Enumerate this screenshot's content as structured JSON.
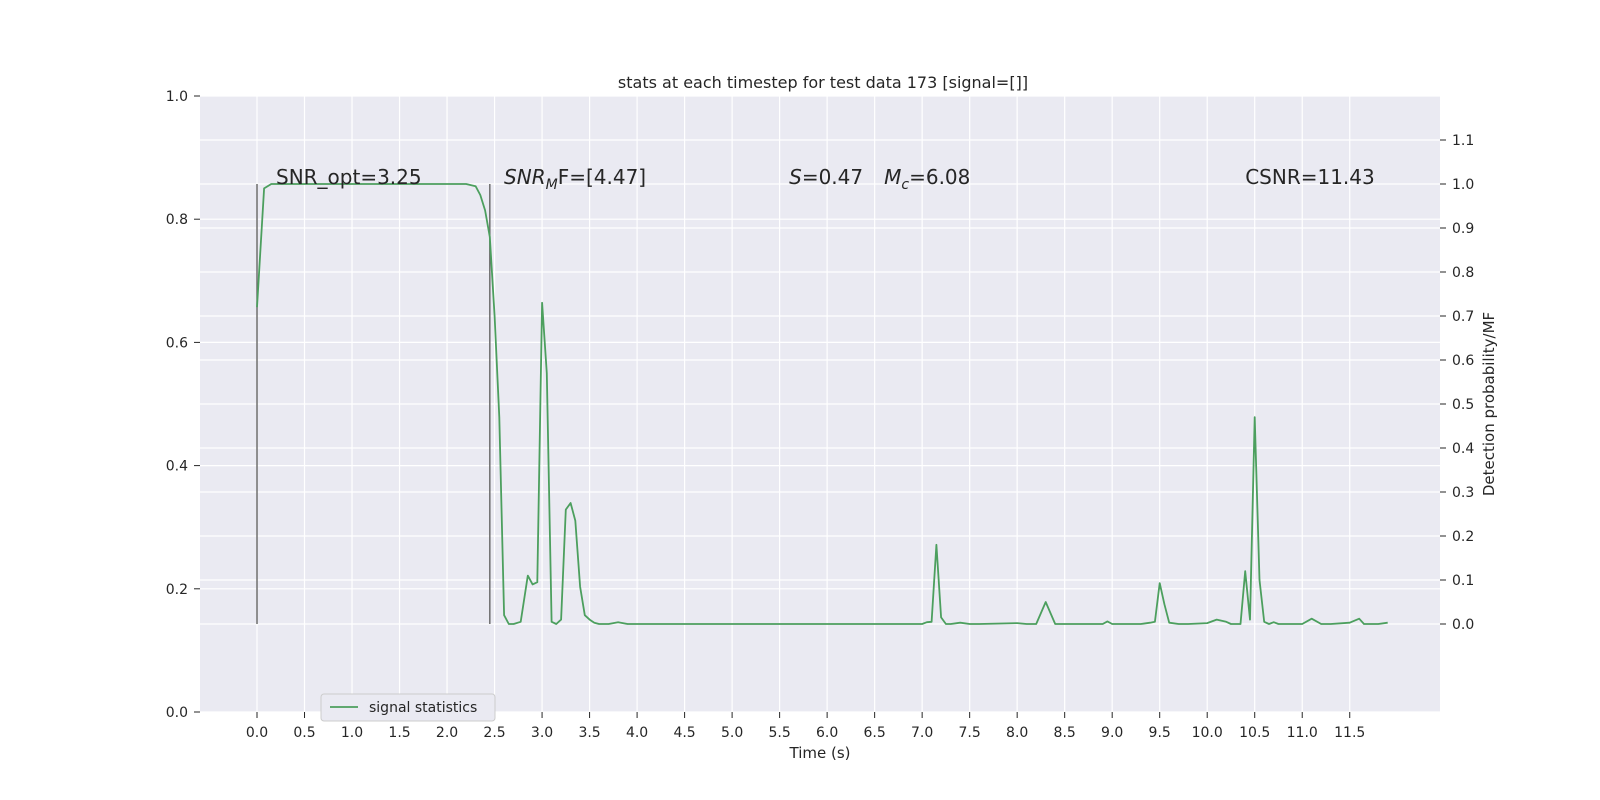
{
  "chart_data": {
    "type": "line",
    "title": "stats at each timestep for test data 173 [signal=[]]",
    "xlabel": "Time (s)",
    "ylabel": "",
    "y2label": "Detection probability/MF",
    "xlim": [
      -0.6,
      12.45
    ],
    "ylim": [
      0.0,
      1.0
    ],
    "y2lim": [
      -0.2,
      1.2
    ],
    "xticks": [
      "0.0",
      "0.5",
      "1.0",
      "1.5",
      "2.0",
      "2.5",
      "3.0",
      "3.5",
      "4.0",
      "4.5",
      "5.0",
      "5.5",
      "6.0",
      "6.5",
      "7.0",
      "7.5",
      "8.0",
      "8.5",
      "9.0",
      "9.5",
      "10.0",
      "10.5",
      "11.0",
      "11.5"
    ],
    "yticks": [
      "0.0",
      "0.2",
      "0.4",
      "0.6",
      "0.8",
      "1.0"
    ],
    "y2ticks": [
      "0.0",
      "0.1",
      "0.2",
      "0.3",
      "0.4",
      "0.5",
      "0.6",
      "0.7",
      "0.8",
      "0.9",
      "1.0",
      "1.1"
    ],
    "grid": true,
    "legend_position": "bottom-left",
    "annotations": [
      {
        "text": "SNR_opt=3.25",
        "x": 0.2
      },
      {
        "text": "SNR",
        "sub": "M",
        "after": "F=[4.47]",
        "x": 2.6,
        "italic": true
      },
      {
        "text": "S=0.47",
        "x": 5.6,
        "italic_first": true
      },
      {
        "text": "M",
        "sub": "c",
        "after": "=6.08",
        "x": 6.6,
        "italic": true
      },
      {
        "text": "CSNR=11.43",
        "x": 10.4
      }
    ],
    "vlines": [
      0.0,
      2.45
    ],
    "series": [
      {
        "name": "signal statistics",
        "color": "#4c9f5e",
        "axis": "right",
        "x": [
          0.0,
          0.075,
          0.15,
          0.25,
          0.5,
          1.0,
          1.5,
          2.0,
          2.2,
          2.3,
          2.35,
          2.4,
          2.45,
          2.5,
          2.55,
          2.6,
          2.65,
          2.7,
          2.775,
          2.85,
          2.9,
          2.95,
          3.0,
          3.05,
          3.1,
          3.15,
          3.2,
          3.25,
          3.3,
          3.35,
          3.4,
          3.45,
          3.5,
          3.55,
          3.6,
          3.65,
          3.7,
          3.8,
          3.9,
          4.0,
          4.05,
          4.1,
          4.2,
          4.5,
          5.0,
          5.5,
          6.0,
          6.5,
          7.0,
          7.05,
          7.1,
          7.15,
          7.2,
          7.25,
          7.3,
          7.4,
          7.5,
          7.6,
          8.0,
          8.1,
          8.2,
          8.3,
          8.4,
          8.5,
          8.9,
          8.95,
          9.0,
          9.1,
          9.3,
          9.4,
          9.45,
          9.5,
          9.55,
          9.6,
          9.7,
          9.8,
          10.0,
          10.1,
          10.2,
          10.25,
          10.3,
          10.35,
          10.4,
          10.45,
          10.5,
          10.55,
          10.6,
          10.65,
          10.7,
          10.75,
          10.8,
          10.9,
          11.0,
          11.1,
          11.2,
          11.25,
          11.3,
          11.5,
          11.6,
          11.65,
          11.7,
          11.8,
          11.9
        ],
        "y": [
          0.72,
          0.99,
          1.0,
          1.0,
          1.0,
          1.0,
          1.0,
          1.0,
          1.0,
          0.995,
          0.975,
          0.94,
          0.88,
          0.7,
          0.47,
          0.02,
          0.0,
          0.0,
          0.005,
          0.11,
          0.09,
          0.095,
          0.73,
          0.57,
          0.005,
          0.0,
          0.01,
          0.26,
          0.275,
          0.235,
          0.085,
          0.02,
          0.01,
          0.003,
          0.0,
          0.0,
          0.0,
          0.004,
          0.0,
          0.0,
          0.0,
          0.0,
          0.0,
          0.0,
          0.0,
          0.0,
          0.0,
          0.0,
          0.0,
          0.004,
          0.005,
          0.18,
          0.015,
          0.0,
          0.0,
          0.003,
          0.0,
          0.0,
          0.002,
          0.0,
          0.0,
          0.05,
          0.0,
          0.0,
          0.0,
          0.006,
          0.0,
          0.0,
          0.0,
          0.003,
          0.005,
          0.093,
          0.045,
          0.003,
          0.0,
          0.0,
          0.002,
          0.01,
          0.005,
          0.0,
          0.0,
          0.0,
          0.12,
          0.01,
          0.47,
          0.1,
          0.005,
          0.0,
          0.004,
          0.0,
          0.0,
          0.0,
          0.0,
          0.012,
          0.0,
          0.0,
          0.0,
          0.003,
          0.012,
          0.0,
          0.0,
          0.0,
          0.003
        ]
      }
    ]
  }
}
